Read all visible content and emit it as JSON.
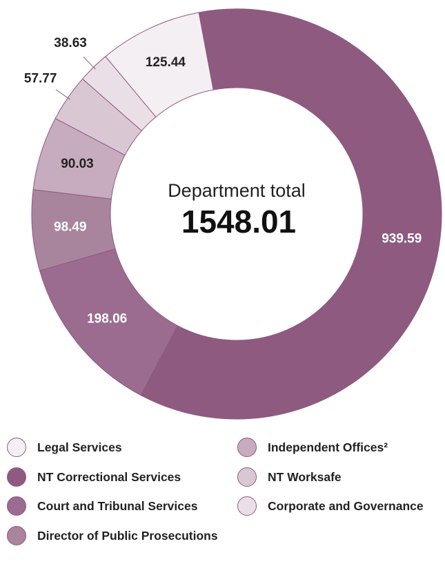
{
  "chart_data": {
    "type": "donut",
    "center_label": "Department total",
    "total": 1548.01,
    "categories": [
      "Legal Services",
      "NT Correctional Services",
      "Court and Tribunal Services",
      "Director of Public Prosecutions",
      "Independent Offices²",
      "NT Worksafe",
      "Corporate and Governance"
    ],
    "values": [
      125.44,
      939.59,
      198.06,
      98.49,
      90.03,
      57.77,
      38.63
    ],
    "colors": [
      "#f4eff3",
      "#8e5a80",
      "#9b6c8f",
      "#a8849d",
      "#c7abbe",
      "#dac7d4",
      "#ebdfe7"
    ]
  }
}
